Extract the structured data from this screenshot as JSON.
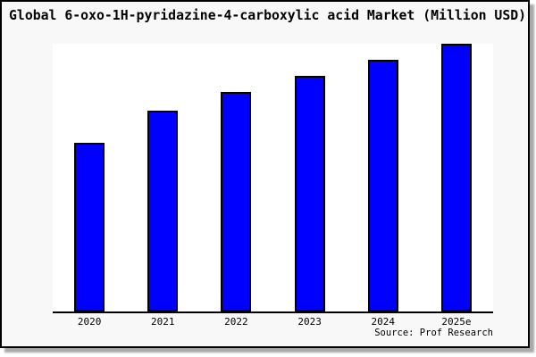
{
  "title": "Global 6-oxo-1H-pyridazine-4-carboxylic acid Market (Million USD)",
  "source_text": "Source: Prof Research",
  "colors": {
    "bar_fill": "#0000ff",
    "bar_border": "#000000",
    "frame_background": "#f8f8f8",
    "plot_background": "#ffffff",
    "axis": "#000000",
    "frame_border": "#000000",
    "shadow": "#a9a9a9"
  },
  "chart_data": {
    "type": "bar",
    "title": "Global 6-oxo-1H-pyridazine-4-carboxylic acid Market (Million USD)",
    "categories": [
      "2020",
      "2021",
      "2022",
      "2023",
      "2024",
      "2025e"
    ],
    "values": [
      63,
      75,
      82,
      88,
      94,
      100
    ],
    "value_note": "relative bar heights (y-axis has no tick labels in source image)",
    "xlabel": "",
    "ylabel": "",
    "ylim": [
      0,
      100
    ],
    "grid": false,
    "legend": "none",
    "annotation": "Source: Prof Research"
  }
}
